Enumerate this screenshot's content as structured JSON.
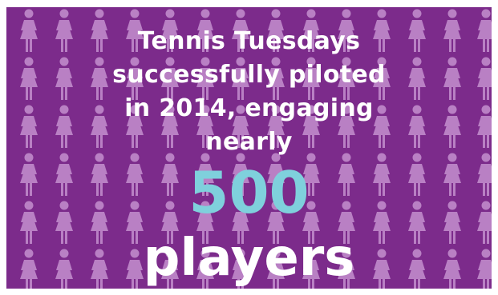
{
  "headline": {
    "line1": "Tennis Tuesdays",
    "line2": "successfully piloted",
    "line3": "in 2014, engaging",
    "line4": "nearly"
  },
  "highlight": {
    "number": "500",
    "unit": "players"
  },
  "colors": {
    "background": "#7c2b8b",
    "figure": "#b980c4",
    "number": "#7fd0dc",
    "text": "#ffffff"
  },
  "icons": {
    "background_figure": "woman-figure-icon"
  }
}
